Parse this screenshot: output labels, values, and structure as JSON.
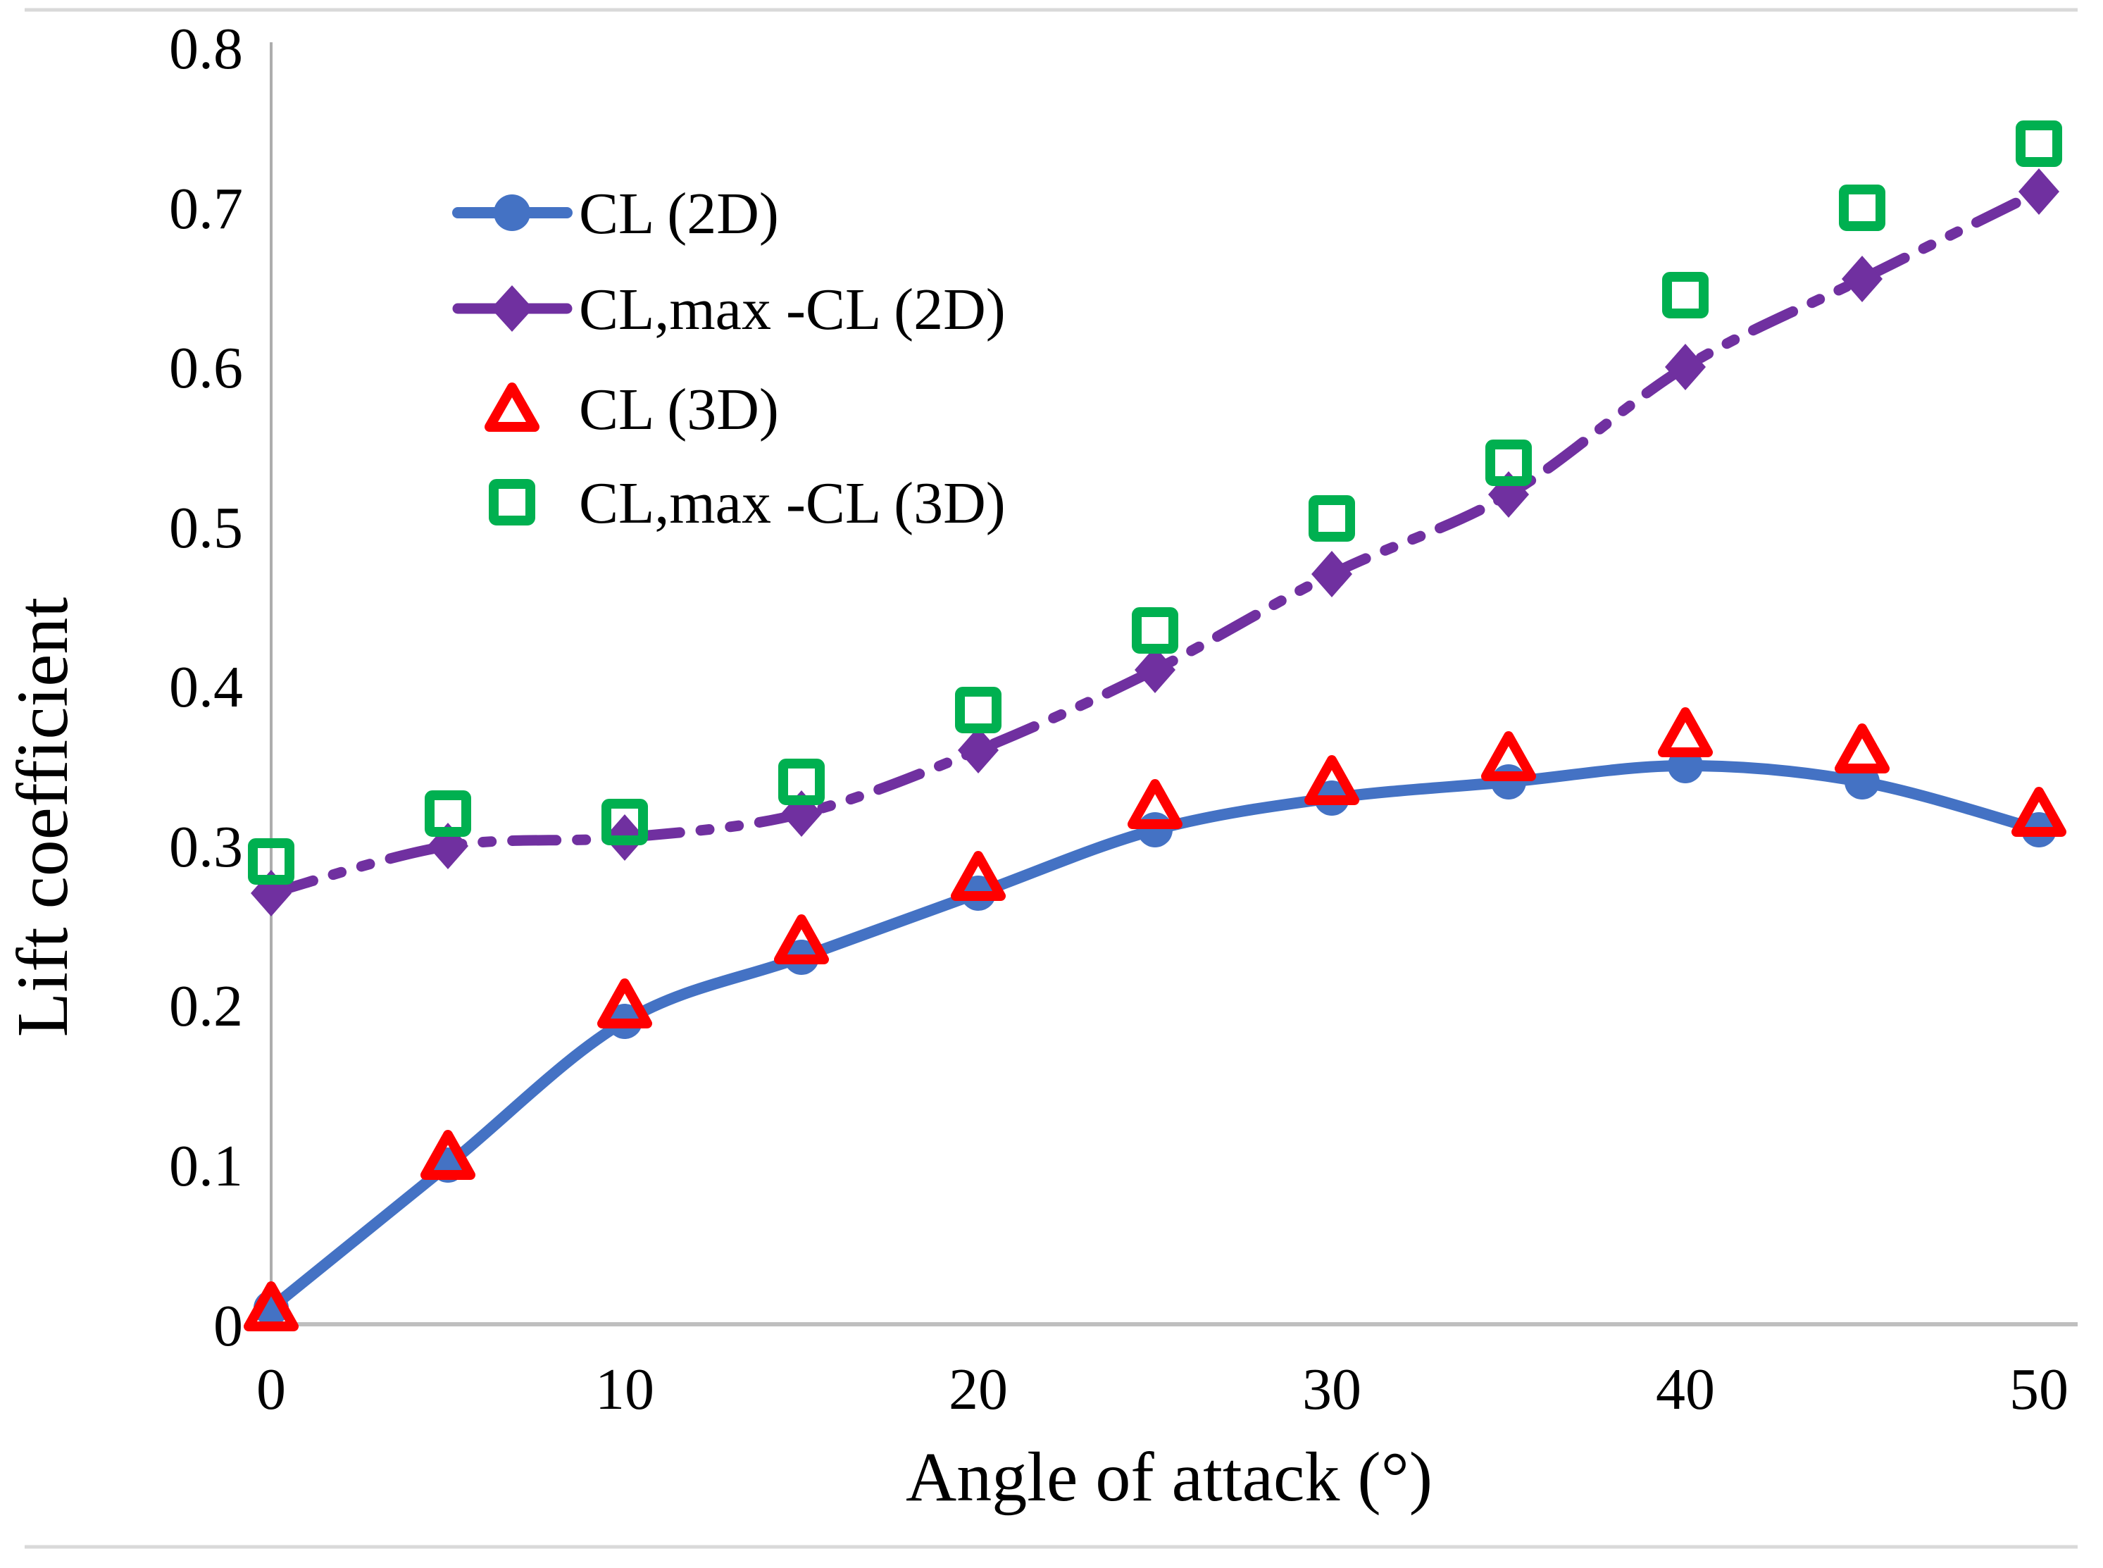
{
  "figure": {
    "y_axis_title": "Lift coefficient",
    "x_axis_title": "Angle of attack (°)"
  },
  "colors": {
    "blue_series": "#4472C4",
    "purple_series": "#7030A0",
    "red_series": "#FF0000",
    "green_series": "#00B050",
    "axis_line": "#ADADAD",
    "separator_line": "#D9D9D9",
    "text": "#000000"
  },
  "chart_data": {
    "type": "line",
    "title": "",
    "xlabel": "Angle of attack (°)",
    "ylabel": "Lift coefficient",
    "xlim": [
      0,
      50
    ],
    "ylim": [
      0,
      0.8
    ],
    "grid": false,
    "legend_position": "inside-top-left",
    "x_tick_labels": [
      "0",
      "10",
      "20",
      "30",
      "40",
      "50"
    ],
    "x_tick_values": [
      0,
      10,
      20,
      30,
      40,
      50
    ],
    "y_tick_labels": [
      "0.8",
      "0.7",
      "0.6",
      "0.5",
      "0.4",
      "0.3",
      "0.2",
      "0.1",
      "0"
    ],
    "y_tick_values": [
      0.8,
      0.7,
      0.6,
      0.5,
      0.4,
      0.3,
      0.2,
      0.1,
      0
    ],
    "x": [
      0,
      5,
      10,
      15,
      20,
      25,
      30,
      35,
      40,
      45,
      50
    ],
    "series": [
      {
        "name": "CL (2D)",
        "render": "smooth-line",
        "marker": "circle",
        "marker_fill": "filled",
        "color": "#4472C4",
        "dash": "solid",
        "values": [
          0.01,
          0.1,
          0.19,
          0.23,
          0.27,
          0.31,
          0.33,
          0.34,
          0.35,
          0.34,
          0.31
        ]
      },
      {
        "name": "CL,max -CL (2D)",
        "render": "smooth-line",
        "marker": "diamond",
        "marker_fill": "filled",
        "color": "#7030A0",
        "dash": "long-dash-dot-dot",
        "values": [
          0.27,
          0.3,
          0.305,
          0.32,
          0.36,
          0.41,
          0.47,
          0.52,
          0.6,
          0.655,
          0.71
        ]
      },
      {
        "name": "CL (3D)",
        "render": "scatter",
        "marker": "triangle-open",
        "marker_fill": "open",
        "color": "#FF0000",
        "dash": "none",
        "values": [
          0.01,
          0.105,
          0.2,
          0.24,
          0.28,
          0.325,
          0.34,
          0.355,
          0.37,
          0.36,
          0.32
        ]
      },
      {
        "name": "CL,max -CL (3D)",
        "render": "scatter",
        "marker": "square-open",
        "marker_fill": "open",
        "color": "#00B050",
        "dash": "none",
        "values": [
          0.29,
          0.32,
          0.315,
          0.34,
          0.385,
          0.435,
          0.505,
          0.54,
          0.645,
          0.7,
          0.74
        ]
      }
    ]
  }
}
